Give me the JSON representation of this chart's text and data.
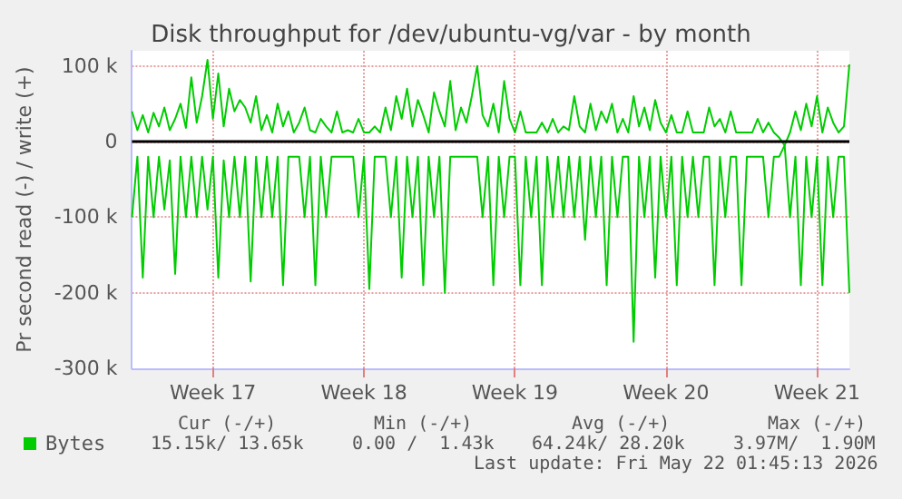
{
  "chart_data": {
    "type": "line",
    "title": "Disk throughput for /dev/ubuntu-vg/var - by month",
    "ylabel": "Pr second read (-) / write (+)",
    "categories": [
      null,
      null,
      null,
      null,
      null,
      null,
      null,
      null,
      null,
      null,
      null,
      null,
      null,
      null,
      null,
      "Week 17",
      null,
      null,
      null,
      null,
      null,
      null,
      null,
      null,
      null,
      null,
      null,
      null,
      null,
      null,
      null,
      null,
      null,
      null,
      null,
      null,
      null,
      null,
      null,
      null,
      null,
      null,
      null,
      "Week 18",
      null,
      null,
      null,
      null,
      null,
      null,
      null,
      null,
      null,
      null,
      null,
      null,
      null,
      null,
      null,
      null,
      null,
      null,
      null,
      null,
      null,
      null,
      null,
      null,
      null,
      null,
      null,
      "Week 19",
      null,
      null,
      null,
      null,
      null,
      null,
      null,
      null,
      null,
      null,
      null,
      null,
      null,
      null,
      null,
      null,
      null,
      null,
      null,
      null,
      null,
      null,
      null,
      null,
      null,
      null,
      null,
      "Week 20",
      null,
      null,
      null,
      null,
      null,
      null,
      null,
      null,
      null,
      null,
      null,
      null,
      null,
      null,
      null,
      null,
      null,
      null,
      null,
      null,
      null,
      null,
      null,
      null,
      null,
      null,
      null,
      "Week 21",
      null,
      null,
      null,
      null,
      null,
      null
    ],
    "series": [
      {
        "name": "Bytes",
        "color": "#00cc00",
        "values": [
          40,
          15,
          35,
          12,
          38,
          20,
          45,
          15,
          30,
          50,
          18,
          85,
          25,
          60,
          108,
          30,
          90,
          20,
          70,
          40,
          55,
          45,
          25,
          60,
          15,
          35,
          12,
          50,
          20,
          40,
          12,
          25,
          45,
          15,
          12,
          30,
          20,
          12,
          40,
          12,
          15,
          12,
          30,
          12,
          12,
          20,
          12,
          45,
          15,
          60,
          30,
          70,
          20,
          55,
          35,
          12,
          65,
          40,
          20,
          80,
          15,
          45,
          25,
          60,
          100,
          35,
          20,
          50,
          12,
          80,
          30,
          12,
          40,
          12,
          12,
          12,
          25,
          12,
          30,
          12,
          20,
          15,
          60,
          20,
          12,
          50,
          15,
          40,
          25,
          50,
          12,
          30,
          12,
          60,
          20,
          45,
          15,
          55,
          25,
          12,
          35,
          12,
          12,
          40,
          12,
          12,
          12,
          45,
          20,
          30,
          12,
          40,
          12,
          12,
          12,
          12,
          30,
          12,
          25,
          12,
          5,
          -5,
          12,
          40,
          15,
          50,
          20,
          60,
          12,
          45,
          25,
          12,
          20,
          102
        ]
      },
      {
        "color": "#00cc00",
        "values": [
          -100,
          -20,
          -180,
          -20,
          -100,
          -20,
          -90,
          -25,
          -175,
          -20,
          -100,
          -20,
          -100,
          -20,
          -90,
          -20,
          -180,
          -25,
          -100,
          -20,
          -100,
          -20,
          -185,
          -20,
          -100,
          -20,
          -100,
          -20,
          -190,
          -20,
          -20,
          -20,
          -100,
          -20,
          -190,
          -20,
          -100,
          -20,
          -20,
          -20,
          -20,
          -20,
          -100,
          -20,
          -195,
          -20,
          -20,
          -20,
          -100,
          -20,
          -180,
          -20,
          -100,
          -20,
          -190,
          -20,
          -100,
          -20,
          -200,
          -20,
          -20,
          -20,
          -20,
          -20,
          -20,
          -100,
          -20,
          -190,
          -20,
          -100,
          -20,
          -20,
          -190,
          -20,
          -100,
          -20,
          -190,
          -20,
          -100,
          -20,
          -100,
          -20,
          -100,
          -20,
          -130,
          -20,
          -100,
          -20,
          -190,
          -20,
          -100,
          -20,
          -20,
          -265,
          -20,
          -100,
          -20,
          -180,
          -20,
          -100,
          -20,
          -190,
          -20,
          -100,
          -20,
          -100,
          -20,
          -20,
          -190,
          -20,
          -100,
          -20,
          -20,
          -190,
          -20,
          -20,
          -20,
          -20,
          -100,
          -20,
          -20,
          -5,
          -100,
          -20,
          -190,
          -20,
          -100,
          -20,
          -190,
          -20,
          -100,
          -20,
          -20,
          -200
        ]
      }
    ],
    "ylim": [
      -300,
      120
    ],
    "yticks": [
      {
        "value": -300,
        "label": "-300 k"
      },
      {
        "value": -200,
        "label": "-200 k"
      },
      {
        "value": -100,
        "label": "-100 k"
      },
      {
        "value": 0,
        "label": "0"
      },
      {
        "value": 100,
        "label": "100 k"
      }
    ],
    "ref_lines": [
      {
        "axis": "y",
        "value": 0,
        "color": "#000000"
      }
    ],
    "grid": true,
    "legend": "bottom",
    "marker": "none",
    "line_style": "solid",
    "annotations": [
      "Cur (-/+)",
      "Min (-/+)",
      "Avg (-/+)",
      "Max (-/+)",
      "15.15k/ 13.65k",
      "0.00 /  1.43k",
      "64.24k/ 28.20k",
      "3.97M/  1.90M",
      "Last update: Fri May 22 01:45:13 2026"
    ]
  }
}
